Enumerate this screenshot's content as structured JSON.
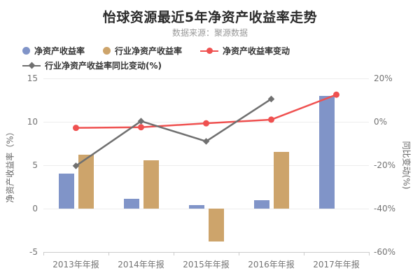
{
  "header": {
    "title": "怡球资源最近5年净资产收益率走势",
    "subtitle": "数据来源：聚源数据"
  },
  "chart_data": {
    "type": "bar+line combo",
    "categories": [
      "2013年年报",
      "2014年年报",
      "2015年年报",
      "2016年年报",
      "2017年年报"
    ],
    "series": [
      {
        "key": "roe",
        "name": "净资产收益率",
        "type": "bar",
        "axis": "left",
        "marker": "circle",
        "color": "#8094c8",
        "values": [
          4.0,
          1.1,
          0.4,
          1.0,
          13.0
        ]
      },
      {
        "key": "industry-roe",
        "name": "行业净资产收益率",
        "type": "bar",
        "axis": "left",
        "marker": "circle",
        "color": "#cda46b",
        "values": [
          6.2,
          5.6,
          -3.8,
          6.5,
          null
        ]
      },
      {
        "key": "roe-change",
        "name": "净资产收益率变动",
        "type": "line",
        "axis": "right",
        "marker": "dot",
        "color": "#ef5150",
        "values": [
          -2.8,
          -2.5,
          -0.7,
          1.0,
          12.5
        ]
      },
      {
        "key": "industry-roe-yoy-change",
        "name": "行业净资产收益率同比变动(%)",
        "type": "line",
        "axis": "right",
        "marker": "diamond",
        "color": "#707070",
        "values": [
          -20.3,
          0.3,
          -9.0,
          10.5,
          null
        ]
      }
    ],
    "left_axis": {
      "title": "净资产收益率（%）",
      "min": -5,
      "max": 15,
      "ticks": [
        15,
        10,
        5,
        0,
        -5
      ]
    },
    "right_axis": {
      "title": "同比变动(%)",
      "min": -60,
      "max": 20,
      "ticks": [
        20,
        0,
        -20,
        -40,
        -60
      ],
      "tick_suffix": "%"
    },
    "grid": true,
    "legend_position": "top-left"
  }
}
